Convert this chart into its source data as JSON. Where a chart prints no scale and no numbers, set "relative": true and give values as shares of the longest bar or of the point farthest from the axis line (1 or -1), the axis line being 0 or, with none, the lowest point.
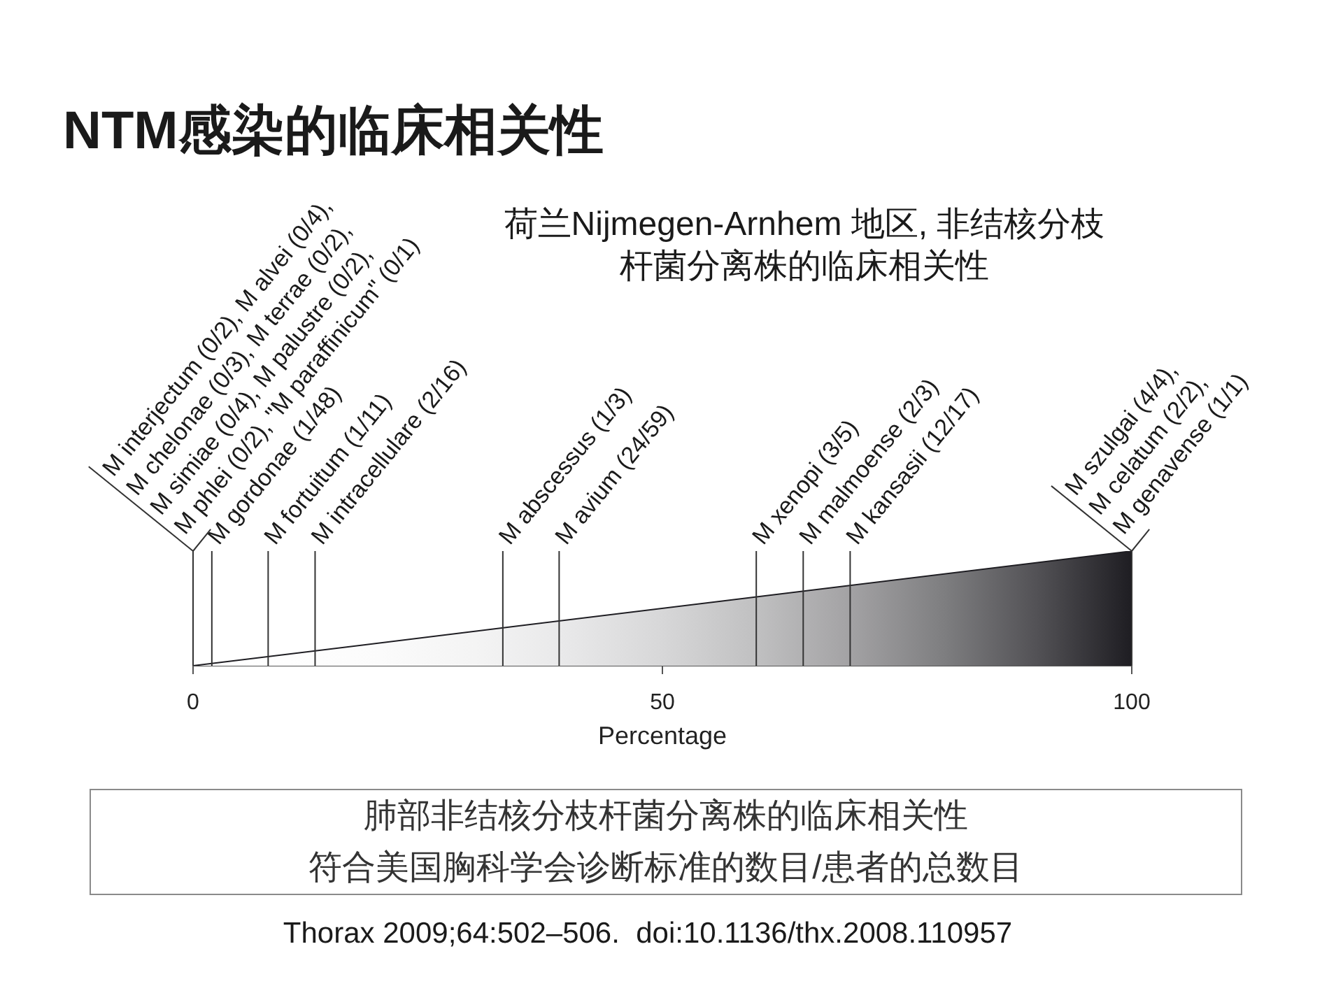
{
  "chart_data": {
    "type": "area",
    "title": "NTM感染的临床相关性",
    "subtitle": "荷兰Nijmegen-Arnhem 地区, 非结核分枝杆菌分离株的临床相关性",
    "xlabel": "Percentage",
    "relative": true,
    "series": [
      {
        "color": "#1e1d22",
        "x": [
          0,
          100
        ],
        "values": [
          0,
          1
        ]
      }
    ],
    "xlim": [
      0,
      100
    ],
    "xticks": [
      0,
      50,
      100
    ],
    "ref_lines": [
      {
        "axis": "x",
        "value": 0,
        "label": "M interjectum (0/2), M alvei (0/4),\nM chelonae (0/3), M terrae (0/2),\nM simiae (0/4), M palustre (0/2),\nM phlei (0/2), \"M paraffinicum\" (0/1)"
      },
      {
        "axis": "x",
        "value": 2,
        "label": "M gordonae (1/48)"
      },
      {
        "axis": "x",
        "value": 8,
        "label": "M fortuitum (1/11)"
      },
      {
        "axis": "x",
        "value": 13,
        "label": "M intracellulare (2/16)"
      },
      {
        "axis": "x",
        "value": 33,
        "label": "M abscessus (1/3)"
      },
      {
        "axis": "x",
        "value": 39,
        "label": "M avium (24/59)"
      },
      {
        "axis": "x",
        "value": 60,
        "label": "M xenopi (3/5)"
      },
      {
        "axis": "x",
        "value": 65,
        "label": "M malmoense (2/3)"
      },
      {
        "axis": "x",
        "value": 70,
        "label": "M kansasii (12/17)"
      },
      {
        "axis": "x",
        "value": 100,
        "label": "M szulgai (4/4),\nM celatum (2/2),\nM genavense (1/1)"
      }
    ],
    "annotations": [
      "肺部非结核分枝杆菌分离株的临床相关性",
      "符合美国胸科学会诊断标准的数目/患者的总数目",
      "Thorax 2009;64:502–506.  doi:10.1136/thx.2008.110957"
    ]
  }
}
